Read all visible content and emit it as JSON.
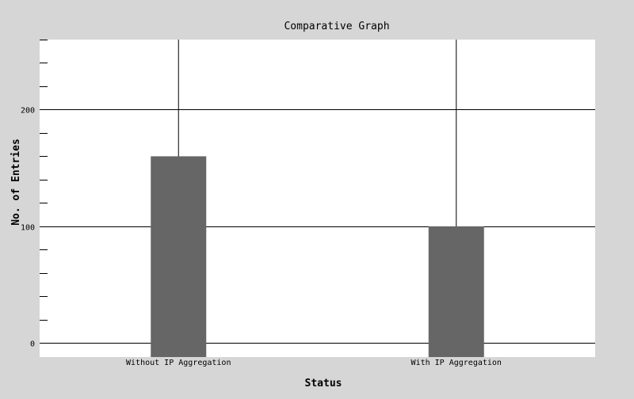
{
  "chart_data": {
    "type": "bar",
    "title": "Comparative Graph",
    "xlabel": "Status",
    "ylabel": "No. of Entries",
    "categories": [
      "Without IP Aggregation",
      "With IP Aggregation"
    ],
    "values": [
      160,
      100
    ],
    "ylim": [
      -12,
      260
    ],
    "yticks": [
      0,
      100,
      200
    ],
    "ytick_labels": [
      "0",
      "100",
      "200"
    ],
    "minor_tick_step": 20,
    "grid": true,
    "legend": "none",
    "colors": {
      "bar": "#666666",
      "plot_background": "#ffffff",
      "page_background": "#d6d6d6",
      "grid": "#000000"
    }
  }
}
